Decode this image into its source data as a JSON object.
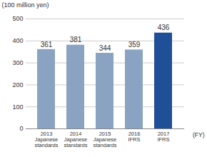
{
  "chart_data": {
    "type": "bar",
    "y_label": "(100 million yen)",
    "x_label": "(FY)",
    "categories": [
      "2013\nJapanese\nstandards",
      "2014\nJapanese\nstandards",
      "2015\nJapanese\nstandards",
      "2016\nIFRS",
      "2017\nIFRS"
    ],
    "values": [
      361,
      381,
      344,
      359,
      436
    ],
    "colors": [
      "#8aa3c3",
      "#8aa3c3",
      "#8aa3c3",
      "#8aa3c3",
      "#1f4f97"
    ],
    "ylim": [
      0,
      500
    ],
    "yticks": [
      0,
      100,
      200,
      300,
      400,
      500
    ],
    "grid": true,
    "data_labels": true
  }
}
